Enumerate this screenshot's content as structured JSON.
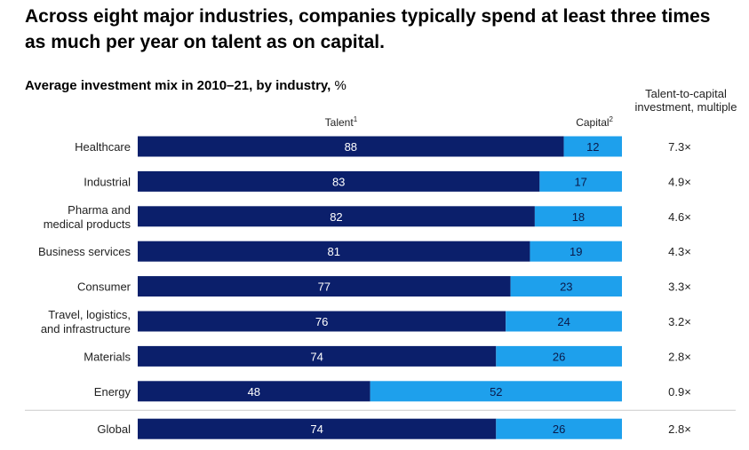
{
  "title": "Across eight major industries, companies typically spend at least three times as much per year on talent as on capital.",
  "subtitle": "Average investment mix in 2010–21, by industry,",
  "unit": "%",
  "multiple_header": "Talent-to-capital investment, multiple",
  "colors": {
    "talent": "#0b1f6b",
    "capital": "#1ea0ec",
    "divider": "#cccccc"
  },
  "chart_data": {
    "type": "bar",
    "orientation": "horizontal",
    "stacked": true,
    "ylim": [
      0,
      100
    ],
    "categories": [
      [
        "Healthcare"
      ],
      [
        "Industrial"
      ],
      [
        "Pharma and",
        "medical products"
      ],
      [
        "Business services"
      ],
      [
        "Consumer"
      ],
      [
        "Travel, logistics,",
        "and infrastructure"
      ],
      [
        "Materials"
      ],
      [
        "Energy"
      ],
      [
        "Global"
      ]
    ],
    "series": [
      {
        "name": "Talent",
        "footnote": "1",
        "values": [
          88,
          83,
          82,
          81,
          77,
          76,
          74,
          48,
          74
        ]
      },
      {
        "name": "Capital",
        "footnote": "2",
        "values": [
          12,
          17,
          18,
          19,
          23,
          24,
          26,
          52,
          26
        ]
      }
    ],
    "multiples": [
      "7.3×",
      "4.9×",
      "4.6×",
      "4.3×",
      "3.3×",
      "3.2×",
      "2.8×",
      "0.9×",
      "2.8×"
    ]
  }
}
